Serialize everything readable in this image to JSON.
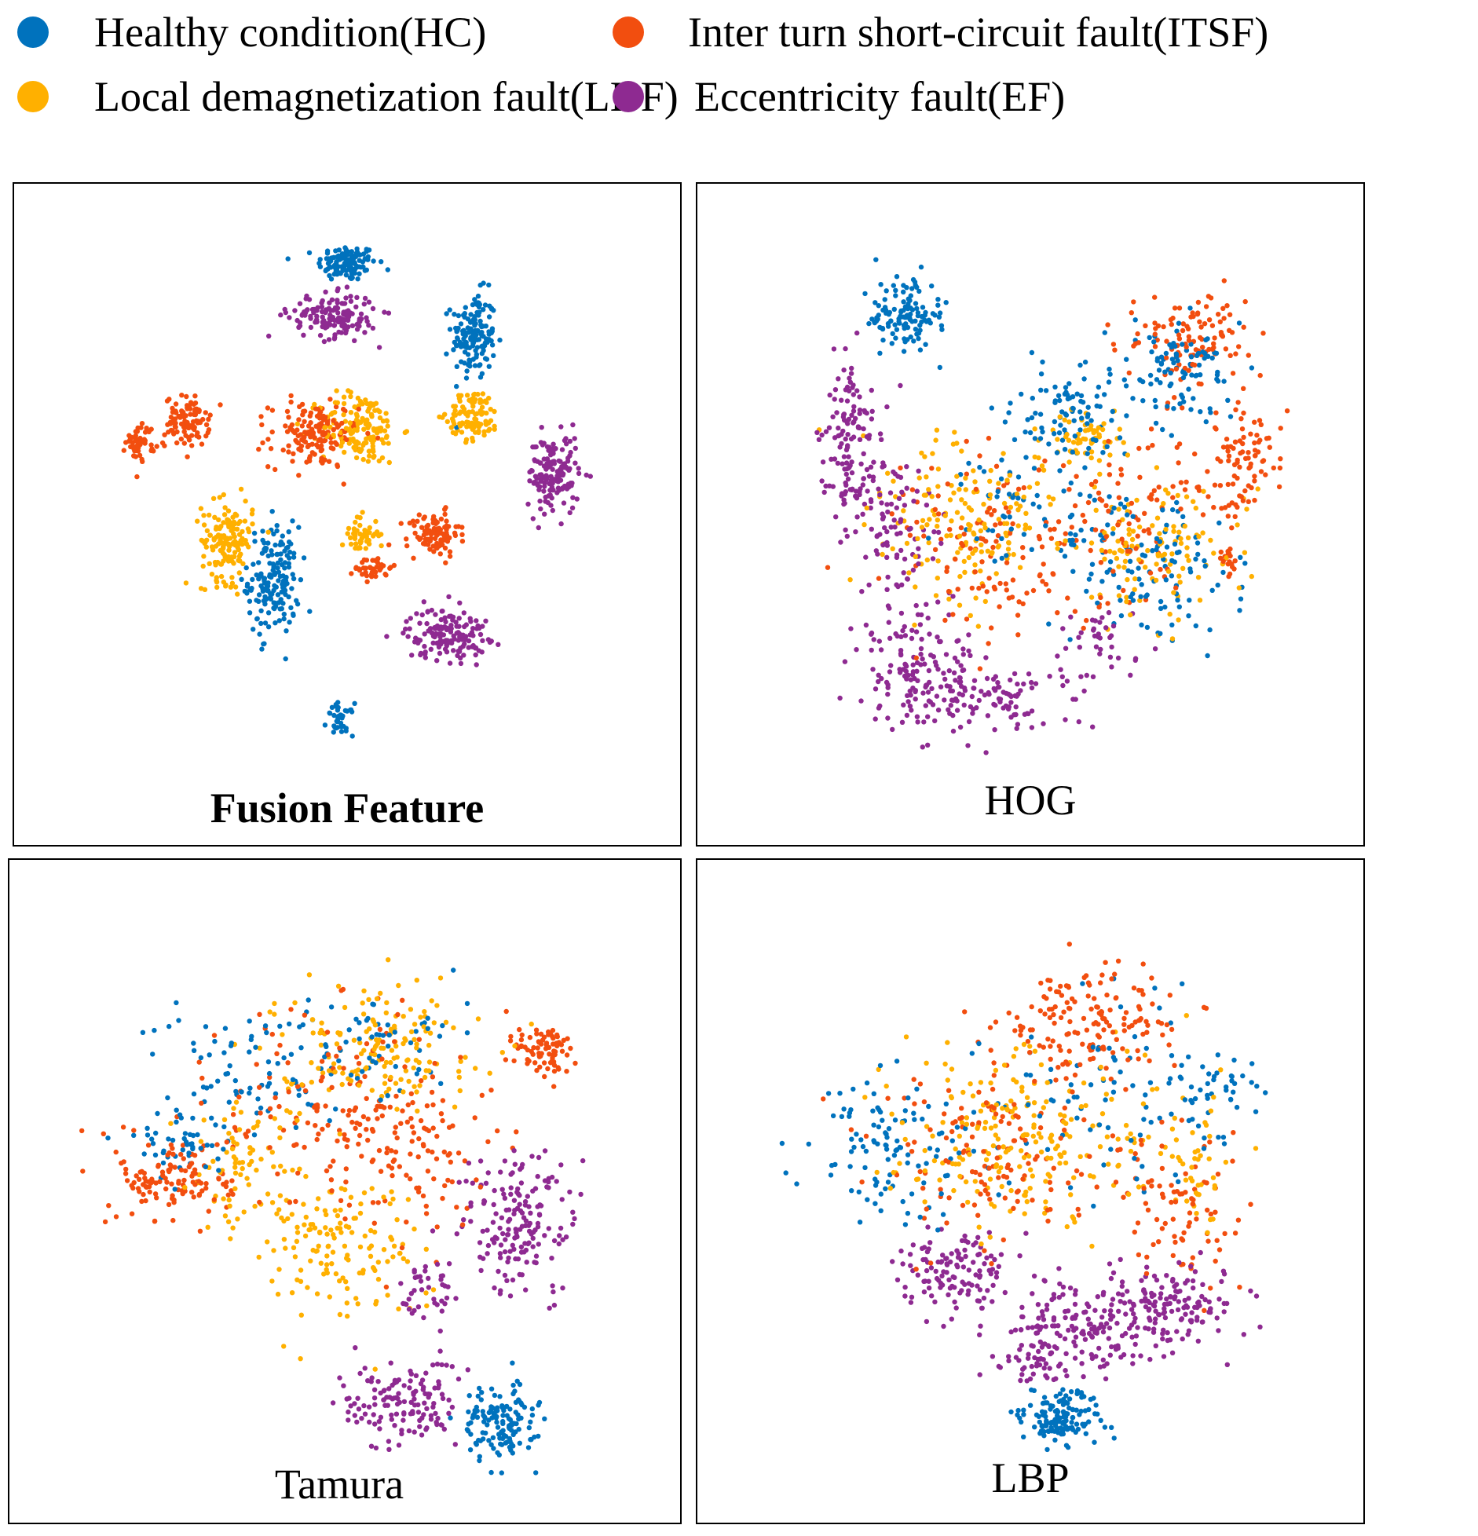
{
  "legend": {
    "items": [
      {
        "key": "HC",
        "label": "Healthy condition(HC)",
        "color": "#0072BD"
      },
      {
        "key": "ITSF",
        "label": "Inter turn short-circuit fault(ITSF)",
        "color": "#F24E0F"
      },
      {
        "key": "LDF",
        "label": "Local demagnetization fault(LDF)",
        "color": "#FFB000"
      },
      {
        "key": "EF",
        "label": "Eccentricity fault(EF)",
        "color": "#8E2A91"
      }
    ]
  },
  "chart_data": [
    {
      "type": "scatter",
      "title": "Fusion Feature",
      "title_bold": true,
      "grid": false,
      "axes_visible": false,
      "xlim": [
        0,
        100
      ],
      "ylim": [
        0,
        100
      ],
      "series": [
        {
          "name": "Healthy condition(HC)",
          "class": "HC",
          "clusters": [
            [
              50,
              88,
              4,
              2.5,
              120
            ],
            [
              69,
              77,
              3,
              6,
              150
            ],
            [
              39,
              40,
              3.5,
              7.5,
              170
            ],
            [
              49,
              19,
              1.8,
              2.2,
              40
            ]
          ]
        },
        {
          "name": "Inter turn short-circuit fault(ITSF)",
          "class": "ITSF",
          "clusters": [
            [
              26,
              64,
              3,
              3.5,
              100
            ],
            [
              19,
              61,
              2,
              2.5,
              50
            ],
            [
              45,
              62,
              6,
              4.5,
              150
            ],
            [
              63,
              47,
              3.5,
              3,
              100
            ],
            [
              54,
              42,
              2.5,
              1.8,
              40
            ]
          ]
        },
        {
          "name": "Local demagnetization fault(LDF)",
          "class": "LDF",
          "clusters": [
            [
              52,
              63,
              5.5,
              5,
              150
            ],
            [
              69,
              65,
              3.5,
              3.5,
              100
            ],
            [
              32,
              46,
              3.5,
              5.5,
              150
            ],
            [
              52,
              47,
              2.5,
              2.5,
              50
            ]
          ]
        },
        {
          "name": "Eccentricity fault(EF)",
          "class": "EF",
          "clusters": [
            [
              48,
              80,
              6,
              3,
              150
            ],
            [
              81,
              56,
              3.5,
              5.5,
              150
            ],
            [
              65,
              32,
              5.5,
              3.5,
              150
            ]
          ]
        }
      ]
    },
    {
      "type": "scatter",
      "title": "HOG",
      "title_bold": false,
      "grid": false,
      "axes_visible": false,
      "xlim": [
        0,
        100
      ],
      "ylim": [
        0,
        100
      ],
      "series": [
        {
          "name": "Healthy condition(HC)",
          "class": "HC",
          "clusters": [
            [
              31,
              80,
              5,
              5,
              120
            ],
            [
              55,
              65,
              8,
              6,
              90
            ],
            [
              73,
              72,
              8,
              8,
              100
            ],
            [
              68,
              42,
              12,
              10,
              110
            ],
            [
              50,
              50,
              12,
              12,
              60
            ]
          ]
        },
        {
          "name": "Inter turn short-circuit fault(ITSF)",
          "class": "ITSF",
          "clusters": [
            [
              75,
              76,
              8,
              7,
              110
            ],
            [
              82,
              58,
              5,
              7,
              90
            ],
            [
              45,
              45,
              14,
              14,
              130
            ],
            [
              65,
              48,
              10,
              12,
              80
            ],
            [
              80,
              43,
              1.5,
              2,
              20
            ]
          ]
        },
        {
          "name": "Local demagnetization fault(LDF)",
          "class": "LDF",
          "clusters": [
            [
              40,
              50,
              12,
              10,
              160
            ],
            [
              68,
              45,
              12,
              10,
              120
            ],
            [
              58,
              62,
              6,
              5,
              60
            ]
          ]
        },
        {
          "name": "Eccentricity fault(EF)",
          "class": "EF",
          "clusters": [
            [
              23,
              60,
              4,
              12,
              140
            ],
            [
              33,
              28,
              8,
              8,
              110
            ],
            [
              42,
              22,
              12,
              5,
              130
            ],
            [
              30,
              48,
              5,
              10,
              80
            ],
            [
              60,
              30,
              6,
              6,
              40
            ]
          ]
        }
      ]
    },
    {
      "type": "scatter",
      "title": "Tamura",
      "title_bold": false,
      "grid": false,
      "axes_visible": false,
      "xlim": [
        0,
        100
      ],
      "ylim": [
        0,
        100
      ],
      "series": [
        {
          "name": "Healthy condition(HC)",
          "class": "HC",
          "clusters": [
            [
              73,
              15,
              5,
              5,
              140
            ],
            [
              38,
              68,
              15,
              10,
              80
            ],
            [
              25,
              58,
              6,
              5,
              50
            ],
            [
              55,
              72,
              12,
              8,
              50
            ]
          ]
        },
        {
          "name": "Inter turn short-circuit fault(ITSF)",
          "class": "ITSF",
          "clusters": [
            [
              25,
              52,
              8,
              6,
              130
            ],
            [
              80,
              71,
              4,
              4,
              80
            ],
            [
              50,
              63,
              16,
              14,
              160
            ],
            [
              60,
              55,
              10,
              10,
              70
            ]
          ]
        },
        {
          "name": "Local demagnetization fault(LDF)",
          "class": "LDF",
          "clusters": [
            [
              55,
              72,
              14,
              8,
              160
            ],
            [
              48,
              42,
              12,
              10,
              150
            ],
            [
              35,
              55,
              8,
              8,
              70
            ]
          ]
        },
        {
          "name": "Eccentricity fault(EF)",
          "class": "EF",
          "clusters": [
            [
              76,
              45,
              8,
              10,
              170
            ],
            [
              58,
              18,
              8,
              6,
              140
            ],
            [
              63,
              35,
              4,
              5,
              40
            ]
          ]
        }
      ]
    },
    {
      "type": "scatter",
      "title": "LBP",
      "title_bold": false,
      "grid": false,
      "axes_visible": false,
      "xlim": [
        0,
        100
      ],
      "ylim": [
        0,
        100
      ],
      "series": [
        {
          "name": "Healthy condition(HC)",
          "class": "HC",
          "clusters": [
            [
              55,
              16,
              5,
              3.5,
              140
            ],
            [
              30,
              57,
              12,
              10,
              110
            ],
            [
              60,
              65,
              18,
              12,
              80
            ],
            [
              77,
              65,
              6,
              6,
              40
            ]
          ]
        },
        {
          "name": "Inter turn short-circuit fault(ITSF)",
          "class": "ITSF",
          "clusters": [
            [
              60,
              75,
              12,
              8,
              160
            ],
            [
              45,
              55,
              18,
              12,
              140
            ],
            [
              72,
              48,
              8,
              10,
              80
            ]
          ]
        },
        {
          "name": "Local demagnetization fault(LDF)",
          "class": "LDF",
          "clusters": [
            [
              50,
              58,
              18,
              12,
              220
            ],
            [
              75,
              55,
              5,
              8,
              40
            ]
          ]
        },
        {
          "name": "Eccentricity fault(EF)",
          "class": "EF",
          "clusters": [
            [
              38,
              38,
              8,
              6,
              120
            ],
            [
              58,
              30,
              12,
              7,
              180
            ],
            [
              72,
              33,
              8,
              5,
              120
            ],
            [
              50,
              25,
              5,
              4,
              40
            ]
          ]
        }
      ]
    }
  ]
}
